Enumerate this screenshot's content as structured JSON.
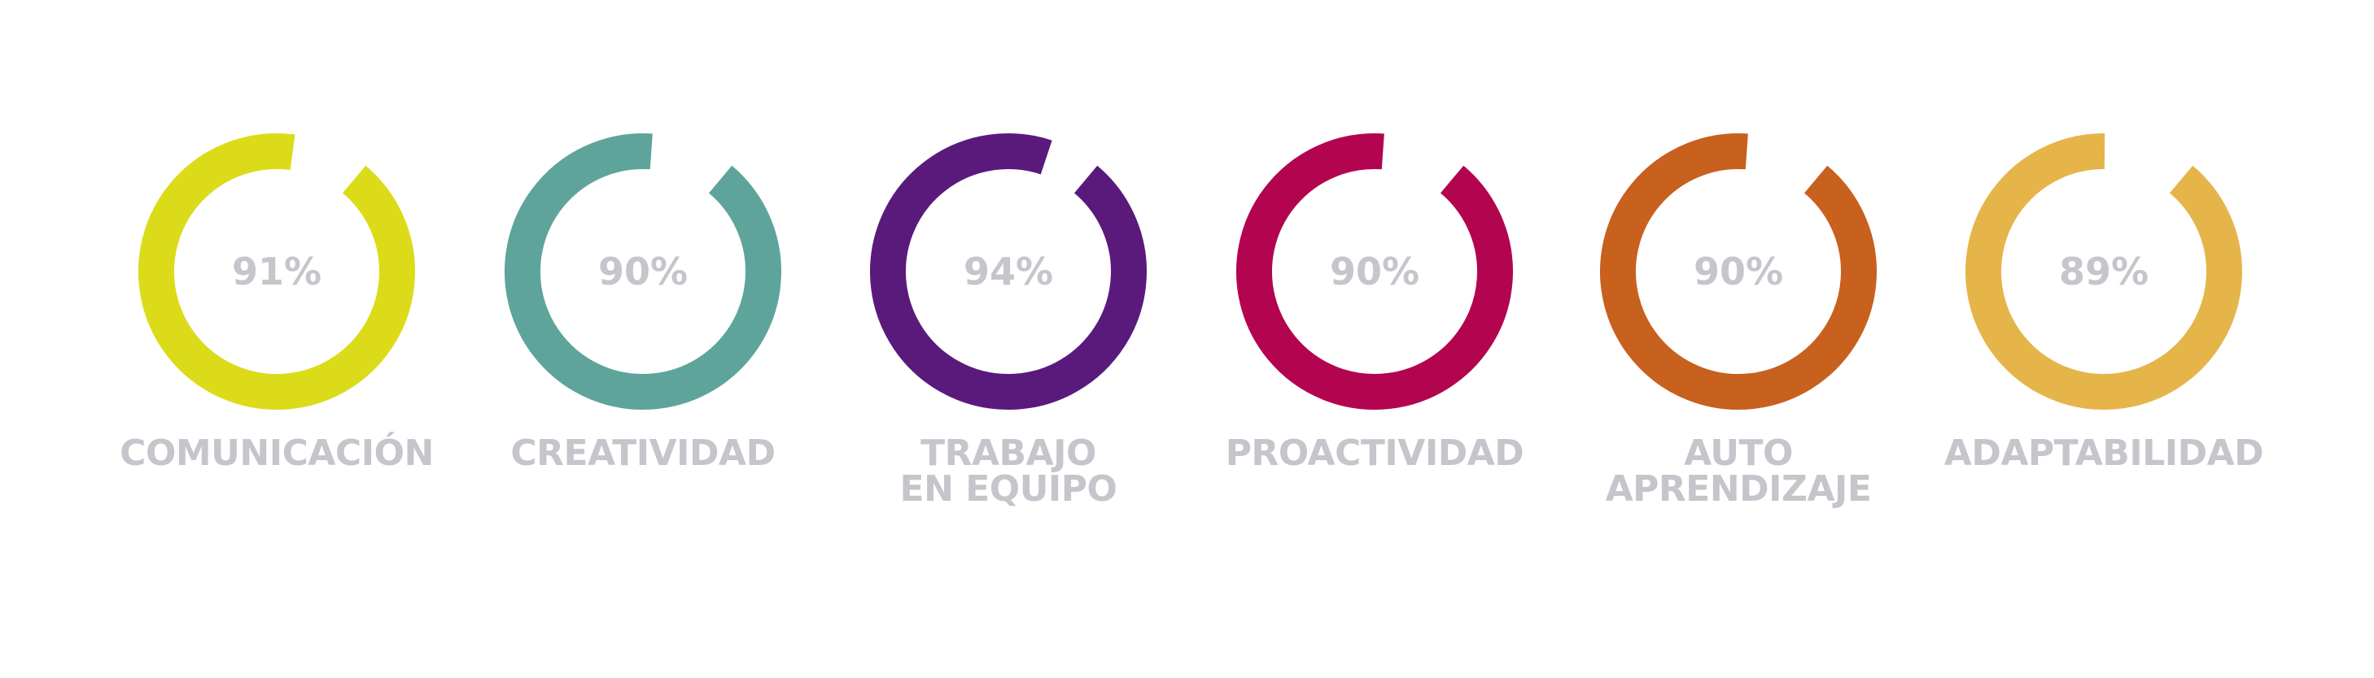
{
  "chart_data": {
    "type": "radial-progress",
    "max": 100,
    "items": [
      {
        "label_lines": [
          "COMUNICACIÓN"
        ],
        "value": 91,
        "value_label": "91%",
        "color": "#dbdb1a"
      },
      {
        "label_lines": [
          "CREATIVIDAD"
        ],
        "value": 90,
        "value_label": "90%",
        "color": "#5ea49a"
      },
      {
        "label_lines": [
          "TRABAJO",
          "EN EQUIPO"
        ],
        "value": 94,
        "value_label": "94%",
        "color": "#5a1a7c"
      },
      {
        "label_lines": [
          "PROACTIVIDAD"
        ],
        "value": 90,
        "value_label": "90%",
        "color": "#b3054f"
      },
      {
        "label_lines": [
          "AUTO",
          "APRENDIZAJE"
        ],
        "value": 90,
        "value_label": "90%",
        "color": "#c8601e"
      },
      {
        "label_lines": [
          "ADAPTABILIDAD"
        ],
        "value": 89,
        "value_label": "89%",
        "color": "#e5b54a"
      }
    ]
  },
  "style": {
    "text_color": "#c5c5cb",
    "background": "#ffffff"
  }
}
